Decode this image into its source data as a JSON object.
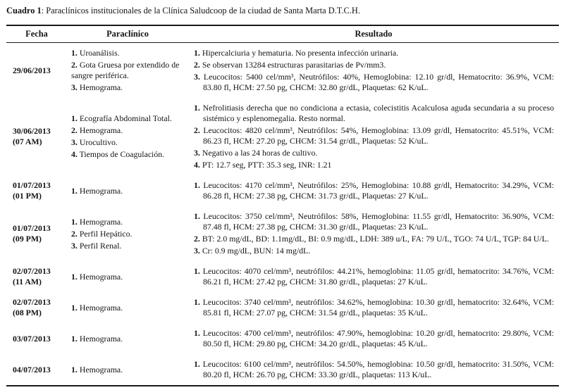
{
  "caption": {
    "label": "Cuadro 1",
    "text": ": Paraclínicos institucionales de la Clínica Saludcoop de la ciudad de Santa Marta D.T.C.H."
  },
  "table": {
    "headers": [
      "Fecha",
      "Paraclínico",
      "Resultado"
    ],
    "rows": [
      {
        "fecha": [
          "29/06/2013"
        ],
        "paraclinico": [
          {
            "num": "1.",
            "text": "Uroanálisis."
          },
          {
            "num": "2.",
            "text": "Gota Gruesa por extendido de sangre periférica."
          },
          {
            "num": "3.",
            "text": "Hemograma."
          }
        ],
        "resultado": [
          {
            "num": "1.",
            "text": "Hipercalciuria y hematuria. No presenta infección urinaria."
          },
          {
            "num": "2.",
            "text": "Se observan 13284 estructuras parasitarias de Pv/mm3."
          },
          {
            "num": "3.",
            "text": "Leucocitos: 5400 cel/mm³, Neutrófilos: 40%, Hemoglobina: 12.10 gr/dl, Hematocrito: 36.9%, VCM: 83.80 fl, HCM: 27.50 pg, CHCM: 32.80 gr/dL, Plaquetas: 62 K/uL."
          }
        ]
      },
      {
        "fecha": [
          "30/06/2013",
          "(07 AM)"
        ],
        "paraclinico": [
          {
            "num": "1.",
            "text": "Ecografía Abdominal Total."
          },
          {
            "num": "2.",
            "text": "Hemograma."
          },
          {
            "num": "3.",
            "text": "Urocultivo."
          },
          {
            "num": "4.",
            "text": "Tiempos de Coagulación."
          }
        ],
        "resultado": [
          {
            "num": "1.",
            "text": "Nefrolitiasis derecha que no condiciona a ectasia, colecistitis Acalculosa aguda secundaria a su proceso sistémico y esplenomegalia. Resto normal."
          },
          {
            "num": "2.",
            "text": "Leucocitos: 4820 cel/mm³, Neutrófilos: 54%, Hemoglobina: 13.09 gr/dl, Hematocrito: 45.51%, VCM: 86.23 fl, HCM: 27.20 pg, CHCM: 31.54 gr/dL, Plaquetas: 52 K/uL."
          },
          {
            "num": "3.",
            "text": "Negativo a las 24 horas de cultivo."
          },
          {
            "num": "4.",
            "text": "PT: 12.7 seg, PTT: 35.3 seg, INR: 1.21"
          }
        ]
      },
      {
        "fecha": [
          "01/07/2013",
          "(01 PM)"
        ],
        "paraclinico": [
          {
            "num": "1.",
            "text": "Hemograma."
          }
        ],
        "resultado": [
          {
            "num": "1.",
            "text": "Leucocitos: 4170 cel/mm³, Neutrófilos: 25%, Hemoglobina: 10.88 gr/dl, Hematocrito: 34.29%, VCM: 86.28 fl, HCM: 27.38 pg, CHCM: 31.73 gr/dL, Plaquetas: 27 K/uL."
          }
        ]
      },
      {
        "fecha": [
          "01/07/2013",
          "(09 PM)"
        ],
        "paraclinico": [
          {
            "num": "1.",
            "text": "Hemograma."
          },
          {
            "num": "2.",
            "text": "Perfil Hepático."
          },
          {
            "num": "3.",
            "text": "Perfil Renal."
          }
        ],
        "resultado": [
          {
            "num": "1.",
            "text": "Leucocitos: 3750 cel/mm³, Neutrófilos: 58%, Hemoglobina: 11.55 gr/dl, Hematocrito: 36.90%, VCM: 87.48 fl, HCM: 27.38 pg, CHCM: 31.30 gr/dL, Plaquetas: 23 K/uL."
          },
          {
            "num": "2.",
            "text": "BT: 2.0 mg/dL, BD: 1.1mg/dL, BI: 0.9 mg/dL, LDH: 389 u/L, FA: 79 U/L, TGO: 74 U/L, TGP: 84 U/L."
          },
          {
            "num": "3.",
            "text": "Cr: 0.9 mg/dL, BUN: 14 mg/dL."
          }
        ]
      },
      {
        "fecha": [
          "02/07/2013",
          "(11 AM)"
        ],
        "paraclinico": [
          {
            "num": "1.",
            "text": "Hemograma."
          }
        ],
        "resultado": [
          {
            "num": "1.",
            "text": "Leucocitos: 4070 cel/mm³, neutrófilos: 44.21%, hemoglobina: 11.05 gr/dl, hematocrito: 34.76%, VCM: 86.21 fl, HCM: 27.42 pg, CHCM: 31.80 gr/dL, plaquetas: 27 K/uL."
          }
        ]
      },
      {
        "fecha": [
          "02/07/2013",
          "(08 PM)"
        ],
        "paraclinico": [
          {
            "num": "1.",
            "text": "Hemograma."
          }
        ],
        "resultado": [
          {
            "num": "1.",
            "text": "Leucocitos: 3740 cel/mm³, neutrófilos: 34.62%, hemoglobina: 10.30 gr/dl, hematocrito: 32.64%, VCM: 85.81 fl, HCM: 27.07 pg, CHCM: 31.54 gr/dL, plaquetas: 35 K/uL."
          }
        ]
      },
      {
        "fecha": [
          "03/07/2013"
        ],
        "paraclinico": [
          {
            "num": "1.",
            "text": "Hemograma."
          }
        ],
        "resultado": [
          {
            "num": "1.",
            "text": "Leucocitos: 4700 cel/mm³, neutrófilos: 47.90%, hemoglobina: 10.20 gr/dl, hematocrito: 29.80%, VCM: 80.50 fl, HCM: 29.80 pg, CHCM: 34.20 gr/dL, plaquetas: 45 K/uL."
          }
        ]
      },
      {
        "fecha": [
          "04/07/2013"
        ],
        "paraclinico": [
          {
            "num": "1.",
            "text": "Hemograma."
          }
        ],
        "resultado": [
          {
            "num": "1.",
            "text": "Leucocitos: 6100 cel/mm³, neutrófilos: 54.50%, hemoglobina: 10.50 gr/dl, hematocrito: 31.50%, VCM: 80.20 fl, HCM: 26.70 pg, CHCM: 33.30 gr/dL, plaquetas: 113 K/uL."
          }
        ]
      }
    ]
  }
}
